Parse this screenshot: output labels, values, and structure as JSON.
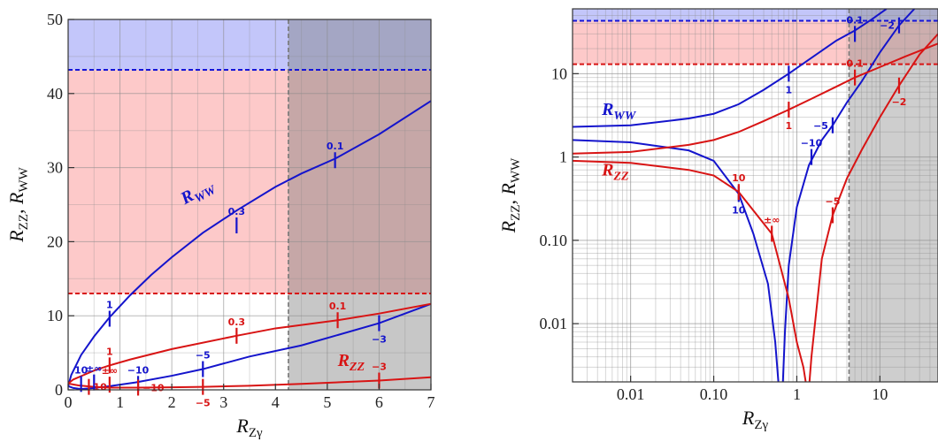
{
  "chart_data": [
    {
      "type": "line",
      "xscale": "linear",
      "yscale": "linear",
      "xlim": [
        0,
        7
      ],
      "ylim": [
        0,
        50
      ],
      "grid": true,
      "xticks": [
        0,
        1,
        2,
        3,
        4,
        5,
        6,
        7
      ],
      "yticks": [
        0,
        10,
        20,
        30,
        40,
        50
      ],
      "xtick_labels": [
        "0",
        "1",
        "2",
        "3",
        "4",
        "5",
        "6",
        "7"
      ],
      "ytick_labels": [
        "0",
        "10",
        "20",
        "30",
        "40",
        "50"
      ],
      "xlabel": "R",
      "xlabel_sub": "Zγ",
      "ylabel": "R",
      "ylabel_sub1": "ZZ",
      "ylabel_mid": ", R",
      "ylabel_sub2": "WW",
      "bands": [
        {
          "name": "ww-excluded",
          "ymin": 43.2,
          "ymax": 50,
          "color": "#c3c6fa"
        },
        {
          "name": "zz-excluded",
          "ymin": 13.0,
          "ymax": 43.2,
          "color": "#fdc9c9"
        },
        {
          "name": "zgamma-excluded",
          "xmin": 4.25,
          "xmax": 7,
          "color": "#7a7a7a"
        }
      ],
      "hlines": [
        {
          "y": 43.2,
          "color": "#1414d8"
        },
        {
          "y": 13.0,
          "color": "#d81414"
        }
      ],
      "vlines": [
        {
          "x": 4.25,
          "color": "#777777"
        }
      ],
      "series": [
        {
          "name": "R",
          "sub": "WW",
          "color": "#1414cc",
          "label_at": [
            2.25,
            25.0
          ],
          "label_angle": -29,
          "branches": [
            {
              "x": [
                0.0,
                0.06,
                0.25,
                0.5,
                0.8,
                1.2,
                1.6,
                2.0,
                2.6,
                3.25,
                4.0,
                4.5,
                5.15,
                6.0,
                7.0
              ],
              "y": [
                0.5,
                2.0,
                4.7,
                7.2,
                9.8,
                12.8,
                15.5,
                17.9,
                21.2,
                24.2,
                27.4,
                29.2,
                31.2,
                34.5,
                39.0
              ]
            },
            {
              "x": [
                0.0,
                0.1,
                0.25,
                0.5,
                0.8,
                1.3,
                2.0,
                2.6,
                3.5,
                4.5,
                6.0,
                7.0
              ],
              "y": [
                0.5,
                0.25,
                0.1,
                0.25,
                0.5,
                1.0,
                1.9,
                2.8,
                4.5,
                6.0,
                9.0,
                11.6
              ]
            }
          ]
        },
        {
          "name": "R",
          "sub": "ZZ",
          "color": "#d81414",
          "label_at": [
            5.2,
            3.2
          ],
          "label_angle": 0,
          "branches": [
            {
              "x": [
                0.0,
                0.1,
                0.3,
                0.5,
                0.8,
                1.2,
                2.0,
                3.25,
                4.0,
                5.2,
                6.0,
                7.0
              ],
              "y": [
                0.85,
                1.4,
                2.0,
                2.6,
                3.3,
                4.1,
                5.5,
                7.3,
                8.3,
                9.4,
                10.3,
                11.6
              ]
            },
            {
              "x": [
                0.0,
                0.2,
                0.5,
                0.8,
                1.0,
                1.35,
                2.0,
                2.6,
                3.5,
                4.5,
                6.0,
                7.0
              ],
              "y": [
                0.85,
                0.6,
                0.4,
                0.3,
                0.3,
                0.3,
                0.35,
                0.4,
                0.55,
                0.8,
                1.25,
                1.7
              ]
            }
          ]
        }
      ],
      "markers": [
        {
          "x": 0.8,
          "y": 9.6,
          "text": "1",
          "color": "#1414cc",
          "pos": "above"
        },
        {
          "x": 3.25,
          "y": 22.2,
          "text": "0.3",
          "color": "#1414cc",
          "pos": "above"
        },
        {
          "x": 5.15,
          "y": 31.0,
          "text": "0.1",
          "color": "#1414cc",
          "pos": "above"
        },
        {
          "x": 0.25,
          "y": 0.8,
          "text": "10",
          "color": "#1414cc",
          "pos": "above"
        },
        {
          "x": 0.5,
          "y": 1.0,
          "text": "±∞",
          "color": "#1414cc",
          "pos": "above"
        },
        {
          "x": 1.35,
          "y": 0.8,
          "text": "−10",
          "color": "#1414cc",
          "pos": "above"
        },
        {
          "x": 2.6,
          "y": 2.8,
          "text": "−5",
          "color": "#1414cc",
          "pos": "above"
        },
        {
          "x": 6.0,
          "y": 9.0,
          "text": "−3",
          "color": "#1414cc",
          "pos": "below"
        },
        {
          "x": 0.8,
          "y": 3.3,
          "text": "1",
          "color": "#d81414",
          "pos": "above"
        },
        {
          "x": 3.25,
          "y": 7.3,
          "text": "0.3",
          "color": "#d81414",
          "pos": "above"
        },
        {
          "x": 5.2,
          "y": 9.4,
          "text": "0.1",
          "color": "#d81414",
          "pos": "above"
        },
        {
          "x": 0.4,
          "y": 0.4,
          "text": "10",
          "color": "#d81414",
          "pos": "right"
        },
        {
          "x": 0.8,
          "y": 0.7,
          "text": "±∞",
          "color": "#d81414",
          "pos": "above"
        },
        {
          "x": 1.35,
          "y": 0.3,
          "text": "−10",
          "color": "#d81414",
          "pos": "right"
        },
        {
          "x": 2.6,
          "y": 0.4,
          "text": "−5",
          "color": "#d81414",
          "pos": "below"
        },
        {
          "x": 6.0,
          "y": 1.25,
          "text": "−3",
          "color": "#d81414",
          "pos": "above"
        }
      ]
    },
    {
      "type": "line",
      "xscale": "log",
      "yscale": "log",
      "xlim": [
        0.002,
        50
      ],
      "ylim": [
        0.002,
        60
      ],
      "grid": true,
      "xticks": [
        0.01,
        0.1,
        1,
        10
      ],
      "yticks": [
        0.01,
        0.1,
        1,
        10
      ],
      "xtick_labels": [
        "0.01",
        "0.10",
        "1",
        "10"
      ],
      "ytick_labels": [
        "0.01",
        "0.10",
        "1",
        "10"
      ],
      "xlabel": "R",
      "xlabel_sub": "Zγ",
      "ylabel": "R",
      "ylabel_sub1": "ZZ",
      "ylabel_mid": ", R",
      "ylabel_sub2": "WW",
      "bands": [
        {
          "name": "ww-excluded",
          "ymin": 43.2,
          "ymax": 60,
          "color": "#c3c6fa"
        },
        {
          "name": "zz-excluded",
          "ymin": 13.0,
          "ymax": 43.2,
          "color": "#fdc9c9"
        },
        {
          "name": "zgamma-excluded",
          "xmin": 4.25,
          "xmax": 50,
          "color": "#8a8a8a"
        }
      ],
      "hlines": [
        {
          "y": 43.2,
          "color": "#1414d8"
        },
        {
          "y": 13.0,
          "color": "#d81414"
        }
      ],
      "vlines": [
        {
          "x": 4.25,
          "color": "#777777"
        }
      ],
      "series": [
        {
          "name": "R",
          "sub": "WW",
          "color": "#1414cc",
          "label_at": [
            0.0045,
            3.2
          ],
          "label_angle": 0,
          "branches": [
            {
              "x": [
                0.002,
                0.01,
                0.05,
                0.1,
                0.2,
                0.4,
                0.8,
                1.5,
                3.0,
                5.0,
                8.0,
                12.0
              ],
              "y": [
                2.3,
                2.4,
                2.9,
                3.3,
                4.3,
                6.4,
                10.0,
                15.5,
                25.0,
                33.0,
                45.0,
                60.0
              ]
            },
            {
              "x": [
                0.002,
                0.01,
                0.05,
                0.1,
                0.2,
                0.3,
                0.45,
                0.55,
                0.6
              ],
              "y": [
                1.6,
                1.5,
                1.2,
                0.9,
                0.36,
                0.12,
                0.03,
                0.006,
                0.002
              ]
            },
            {
              "x": [
                0.68,
                0.72,
                0.8,
                1.0,
                1.4,
                2.0,
                2.7,
                4.0,
                6.0,
                10.0,
                17.0,
                26.0
              ],
              "y": [
                0.002,
                0.008,
                0.05,
                0.25,
                0.8,
                1.6,
                2.4,
                4.5,
                8.0,
                18.0,
                38.0,
                60.0
              ]
            }
          ]
        },
        {
          "name": "R",
          "sub": "ZZ",
          "color": "#d81414",
          "label_at": [
            0.0045,
            0.6
          ],
          "label_angle": 0,
          "branches": [
            {
              "x": [
                0.002,
                0.01,
                0.05,
                0.1,
                0.2,
                0.4,
                0.8,
                1.5,
                3.0,
                5.0,
                10.0,
                20.0,
                50.0
              ],
              "y": [
                1.1,
                1.15,
                1.4,
                1.6,
                2.0,
                2.7,
                3.7,
                5.0,
                7.0,
                9.0,
                12.0,
                16.0,
                23.0
              ]
            },
            {
              "x": [
                0.002,
                0.01,
                0.05,
                0.1,
                0.2,
                0.5,
                0.8,
                1.0,
                1.2,
                1.28
              ],
              "y": [
                0.9,
                0.85,
                0.7,
                0.6,
                0.38,
                0.12,
                0.02,
                0.006,
                0.003,
                0.002
              ]
            },
            {
              "x": [
                1.42,
                1.5,
                2.0,
                2.7,
                4.0,
                6.0,
                10.0,
                17.0,
                30.0,
                50.0
              ],
              "y": [
                0.002,
                0.004,
                0.06,
                0.2,
                0.55,
                1.2,
                3.0,
                7.2,
                17.0,
                30.0
              ]
            }
          ]
        }
      ],
      "markers": [
        {
          "x": 0.8,
          "y": 10.0,
          "text": "1",
          "color": "#1414cc",
          "pos": "below"
        },
        {
          "x": 5.0,
          "y": 30.0,
          "text": "0.1",
          "color": "#1414cc",
          "pos": "above"
        },
        {
          "x": 17.0,
          "y": 38.0,
          "text": "−2",
          "color": "#1414cc",
          "pos": "left"
        },
        {
          "x": 0.2,
          "y": 0.36,
          "text": "10",
          "color": "#1414cc",
          "pos": "below"
        },
        {
          "x": 1.5,
          "y": 1.0,
          "text": "−10",
          "color": "#1414cc",
          "pos": "above"
        },
        {
          "x": 2.7,
          "y": 2.4,
          "text": "−5",
          "color": "#1414cc",
          "pos": "left"
        },
        {
          "x": 0.8,
          "y": 3.7,
          "text": "1",
          "color": "#d81414",
          "pos": "below"
        },
        {
          "x": 5.0,
          "y": 9.0,
          "text": "0.1",
          "color": "#d81414",
          "pos": "above"
        },
        {
          "x": 17.0,
          "y": 7.2,
          "text": "−2",
          "color": "#d81414",
          "pos": "below"
        },
        {
          "x": 0.2,
          "y": 0.38,
          "text": "10",
          "color": "#d81414",
          "pos": "above"
        },
        {
          "x": 0.5,
          "y": 0.12,
          "text": "±∞",
          "color": "#d81414",
          "pos": "above"
        },
        {
          "x": 2.7,
          "y": 0.2,
          "text": "−5",
          "color": "#d81414",
          "pos": "above"
        }
      ]
    }
  ]
}
